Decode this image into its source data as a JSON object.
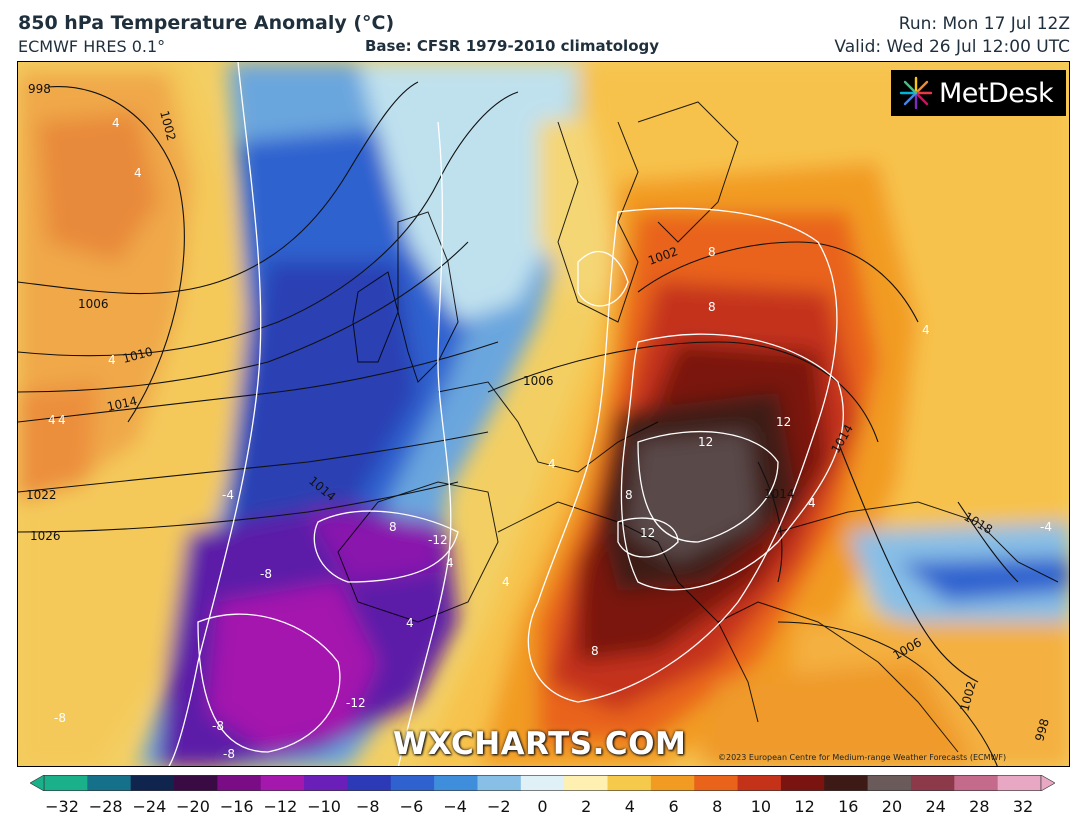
{
  "header": {
    "title": "850 hPa Temperature Anomaly (°C)",
    "model": "ECMWF HRES 0.1°",
    "base": "Base: CFSR 1979-2010 climatology",
    "run": "Run: Mon 17 Jul 12Z",
    "valid": "Valid: Wed 26 Jul 12:00 UTC"
  },
  "logo": {
    "text": "MetDesk"
  },
  "watermark": "WXCHARTS.COM",
  "copyright": "©2023 European Centre for Medium-range Weather Forecasts (ECMWF)",
  "isobar_labels": [
    "998",
    "1002",
    "1006",
    "1010",
    "1014",
    "1022",
    "1026",
    "1002",
    "1006",
    "1014",
    "1018",
    "1006",
    "1002",
    "998",
    "1014",
    "1014"
  ],
  "anomaly_labels": [
    "4",
    "4",
    "4",
    "4",
    "4",
    "-4",
    "-8",
    "-8",
    "8",
    "-12",
    "-12",
    "-8",
    "-8",
    "8",
    "8",
    "8",
    "12",
    "12",
    "12",
    "8",
    "4",
    "4",
    "4",
    "-4",
    "4",
    "4",
    "4"
  ],
  "colorbar": {
    "ticks": [
      "−32",
      "−28",
      "−24",
      "−20",
      "−16",
      "−12",
      "−10",
      "−8",
      "−6",
      "−4",
      "−2",
      "0",
      "2",
      "4",
      "6",
      "8",
      "10",
      "12",
      "16",
      "20",
      "24",
      "28",
      "32"
    ],
    "colors": [
      "#19b08a",
      "#15708a",
      "#10254e",
      "#3a0a45",
      "#7a0d85",
      "#a418ae",
      "#6a1fb8",
      "#2d3ab8",
      "#2f62cf",
      "#3f8edc",
      "#88bfe6",
      "#dff1f6",
      "#fdf0b0",
      "#f5c94a",
      "#f29b22",
      "#e9641a",
      "#c4321a",
      "#7a1410",
      "#3d1a16",
      "#6a5a5a",
      "#8c3a4a",
      "#c46a8a",
      "#e8a8c4"
    ]
  }
}
